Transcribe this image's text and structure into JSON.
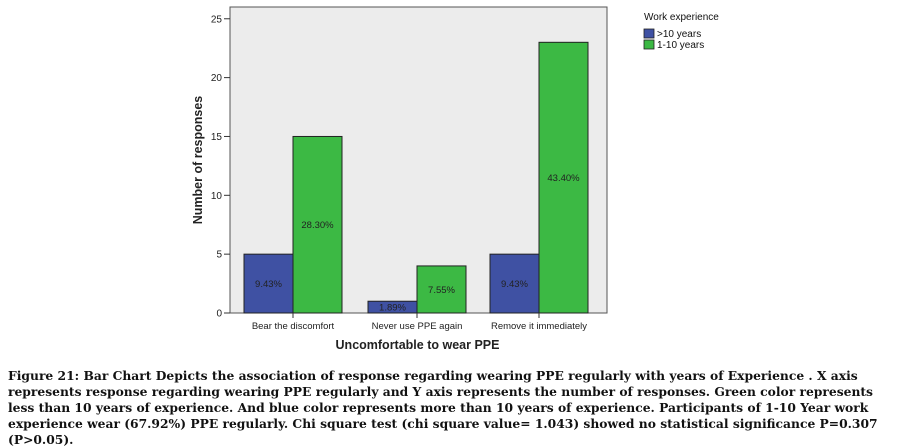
{
  "chart_data": {
    "type": "bar",
    "title": "",
    "xlabel": "Uncomfortable to wear PPE",
    "ylabel": "Number of responses",
    "ylim": [
      0,
      26
    ],
    "yticks": [
      "0",
      "5",
      "10",
      "15",
      "20",
      "25"
    ],
    "categories": [
      "Bear the discomfort",
      "Never use PPE again",
      "Remove it immediately"
    ],
    "legend_title": "Work experience",
    "legend_position": "top-right, outside plot",
    "grid": false,
    "series": [
      {
        "name": ">10 years",
        "color": "#3f51a3",
        "values": [
          5,
          1,
          5
        ],
        "labels": [
          "9.43%",
          "1.89%",
          "9.43%"
        ]
      },
      {
        "name": "1-10 years",
        "color": "#3cb944",
        "values": [
          15,
          4,
          23
        ],
        "labels": [
          "28.30%",
          "7.55%",
          "43.40%"
        ]
      }
    ],
    "plot_background": "#ececec"
  },
  "caption": "Figure 21: Bar Chart Depicts the association of response regarding wearing PPE regularly with years of Experience . X axis represents response regarding wearing PPE regularly and Y axis represents the number of responses. Green color represents less than 10 years of experience. And blue color represents more than 10 years of experience.  Participants of 1-10 Year work experience wear (67.92%) PPE regularly.  Chi square test (chi square value= 1.043) showed no statistical significance P=0.307 (P>0.05)."
}
